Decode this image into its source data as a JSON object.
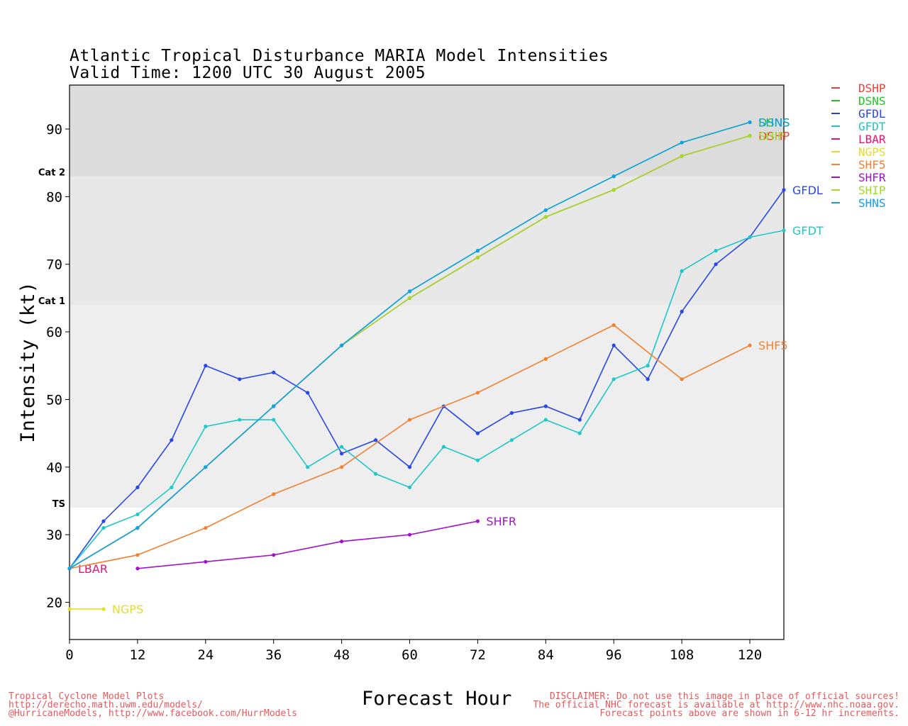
{
  "header": {
    "title_line1": "Atlantic Tropical Disturbance MARIA Model Intensities",
    "title_line2": "Valid Time: 1200 UTC 30 August 2005"
  },
  "footer": {
    "left": [
      "Tropical Cyclone Model Plots",
      "http://derecho.math.uwm.edu/models/",
      "@HurricaneModels, http://www.facebook.com/HurrModels"
    ],
    "right": [
      "DISCLAIMER: Do not use this image in place of official sources!",
      "The official NHC forecast is available at http://www.nhc.noaa.gov.",
      "Forecast points above are shown in 6-12 hr increments."
    ],
    "color": "#e8585a"
  },
  "chart_data": {
    "type": "line",
    "title": "Atlantic Tropical Disturbance MARIA Model Intensities",
    "subtitle": "Valid Time: 1200 UTC 30 August 2005",
    "xlabel": "Forecast Hour",
    "ylabel": "Intensity (kt)",
    "xlim": [
      0,
      126
    ],
    "ylim": [
      14.5,
      96.5
    ],
    "xticks": [
      0,
      12,
      24,
      36,
      48,
      60,
      72,
      84,
      96,
      108,
      120
    ],
    "yticks": [
      20,
      30,
      40,
      50,
      60,
      70,
      80,
      90
    ],
    "grid": false,
    "legend_position": "right, outside plot",
    "bands": [
      {
        "label": "TS",
        "from": 34,
        "to": 64,
        "color": "#eeeeee"
      },
      {
        "label": "Cat 1",
        "from": 64,
        "to": 83,
        "color": "#e8e8e8"
      },
      {
        "label": "Cat 2",
        "from": 83,
        "to": 96.5,
        "color": "#dcdcdc"
      }
    ],
    "series": [
      {
        "name": "DSHP",
        "color": "#f03c3c",
        "end_label": "DSHP",
        "x": [
          0,
          12,
          24,
          36,
          48,
          60,
          72,
          84,
          96,
          108,
          120
        ],
        "y": [
          25,
          31,
          40,
          49,
          58,
          65,
          71,
          77,
          81,
          86,
          89
        ]
      },
      {
        "name": "DSNS",
        "color": "#1ec81e",
        "end_label": "DSNS",
        "x": [
          0,
          12,
          24,
          36,
          48,
          60,
          72,
          84,
          96,
          108,
          120
        ],
        "y": [
          25,
          31,
          40,
          49,
          58,
          66,
          72,
          78,
          83,
          88,
          91
        ]
      },
      {
        "name": "GFDL",
        "color": "#2846e6",
        "end_label": "GFDL",
        "x": [
          0,
          6,
          12,
          18,
          24,
          30,
          36,
          42,
          48,
          54,
          60,
          66,
          72,
          78,
          84,
          90,
          96,
          102,
          108,
          114,
          120,
          126
        ],
        "y": [
          25,
          32,
          37,
          44,
          55,
          53,
          54,
          51,
          42,
          44,
          40,
          49,
          45,
          48,
          49,
          47,
          58,
          53,
          63,
          70,
          74,
          81
        ]
      },
      {
        "name": "GFDT",
        "color": "#1ec8c8",
        "end_label": "GFDT",
        "x": [
          0,
          6,
          12,
          18,
          24,
          30,
          36,
          42,
          48,
          54,
          60,
          66,
          72,
          78,
          84,
          90,
          96,
          102,
          108,
          114,
          120,
          126
        ],
        "y": [
          25,
          31,
          33,
          37,
          46,
          47,
          47,
          40,
          43,
          39,
          37,
          43,
          41,
          44,
          47,
          45,
          53,
          55,
          69,
          72,
          74,
          75
        ]
      },
      {
        "name": "LBAR",
        "color": "#e6147a",
        "end_label": "LBAR",
        "x": [
          0
        ],
        "y": [
          25
        ]
      },
      {
        "name": "NGPS",
        "color": "#e6dc28",
        "end_label": "NGPS",
        "x": [
          0,
          6
        ],
        "y": [
          19,
          19
        ]
      },
      {
        "name": "SHF5",
        "color": "#f08232",
        "end_label": "SHF5",
        "x": [
          0,
          12,
          24,
          36,
          48,
          60,
          72,
          84,
          96,
          108,
          120
        ],
        "y": [
          25,
          27,
          31,
          36,
          40,
          47,
          51,
          56,
          61,
          53,
          58
        ]
      },
      {
        "name": "SHFR",
        "color": "#a014c8",
        "end_label": "SHFR",
        "x": [
          12,
          24,
          36,
          48,
          60,
          72
        ],
        "y": [
          25,
          26,
          27,
          29,
          30,
          32
        ]
      },
      {
        "name": "SHIP",
        "color": "#a0dc28",
        "end_label": "SHIP",
        "x": [
          0,
          12,
          24,
          36,
          48,
          60,
          72,
          84,
          96,
          108,
          120
        ],
        "y": [
          25,
          31,
          40,
          49,
          58,
          65,
          71,
          77,
          81,
          86,
          89
        ]
      },
      {
        "name": "SHNS",
        "color": "#14a0e6",
        "end_label": "SHNS",
        "x": [
          0,
          12,
          24,
          36,
          48,
          60,
          72,
          84,
          96,
          108,
          120
        ],
        "y": [
          25,
          31,
          40,
          49,
          58,
          66,
          72,
          78,
          83,
          88,
          91
        ]
      }
    ]
  }
}
